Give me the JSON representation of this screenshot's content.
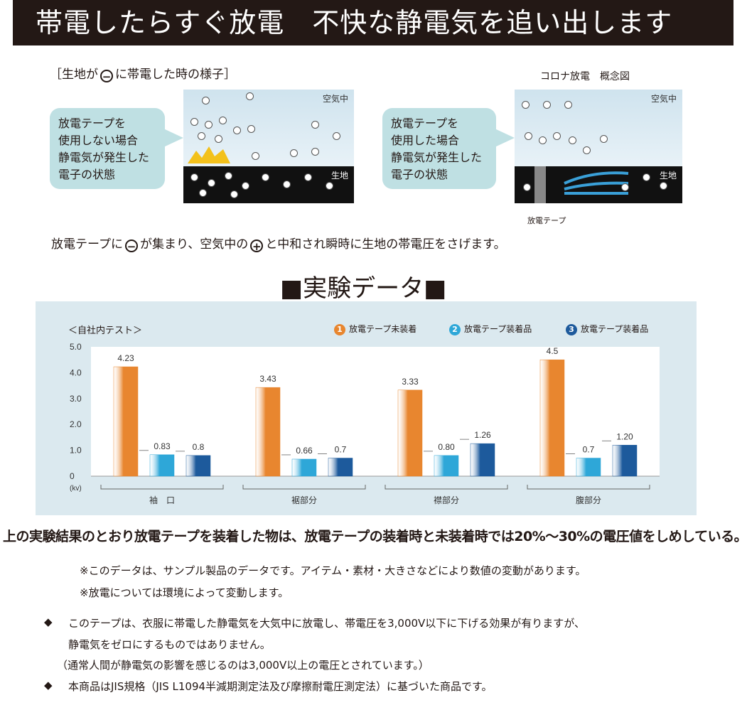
{
  "banner": {
    "title": "帯電したらすぐ放電　不快な静電気を追い出します"
  },
  "diagram": {
    "left_caption_pre": "［生地が",
    "left_caption_minus": "−",
    "left_caption_post": "に帯電した時の様子］",
    "right_caption": "コロナ放電　概念図",
    "air_label": "空気中",
    "fabric_label": "生地",
    "bubble_left": [
      "放電テープを",
      "使用しない場合",
      "静電気が発生した",
      "電子の状態"
    ],
    "bubble_right": [
      "放電テープを",
      "使用した場合",
      "静電気が発生した",
      "電子の状態"
    ],
    "tape_label": "放電テープ"
  },
  "explain": {
    "pre": "放電テープに",
    "minus": "−",
    "mid": "が集まり、空気中の",
    "plus": "+",
    "post": "と中和され瞬時に生地の帯電圧をさげます。"
  },
  "section_title": "■実験データ■",
  "chart_data": {
    "type": "bar",
    "title": "＜自社内テスト＞",
    "ylabel": "(kv)",
    "ylim": [
      0,
      5.0
    ],
    "yticks": [
      "5.0",
      "4.0",
      "3.0",
      "2.0",
      "1.0",
      "0"
    ],
    "categories": [
      "袖　口",
      "裾部分",
      "襟部分",
      "腹部分"
    ],
    "series": [
      {
        "name": "放電テープ未装着",
        "marker": "1",
        "color": "#e8862f",
        "values": [
          4.23,
          3.43,
          3.33,
          4.5
        ],
        "labels": [
          "4.23",
          "3.43",
          "3.33",
          "4.5"
        ]
      },
      {
        "name": "放電テープ装着品",
        "marker": "2",
        "color": "#2ea7d8",
        "values": [
          0.83,
          0.66,
          0.8,
          0.7
        ],
        "labels": [
          "0.83",
          "0.66",
          "0.80",
          "0.7"
        ]
      },
      {
        "name": "放電テープ装着品",
        "marker": "3",
        "color": "#1d5a9c",
        "values": [
          0.8,
          0.7,
          1.26,
          1.2
        ],
        "labels": [
          "0.8",
          "0.7",
          "1.26",
          "1.20"
        ]
      }
    ],
    "grid": false,
    "legend": "top-right"
  },
  "conclusion": "上の実験結果のとおり放電テープを装着した物は、放電テープの装着時と未装着時では20%～30%の電圧値をしめしている。",
  "notes": [
    "※このデータは、サンプル製品のデータです。アイテム・素材・大きさなどにより数値の変動があります。",
    "※放電については環境によって変動します。"
  ],
  "bullets": {
    "mark": "◆",
    "item1_lines": [
      "このテープは、衣服に帯電した静電気を大気中に放電し、帯電圧を3,000V以下に下げる効果が有りますが、",
      "静電気をゼロにするものではありません。",
      "（通常人間が静電気の影響を感じるのは3,000V以上の電圧とされています。）"
    ],
    "item2": "本商品はJIS規格（JIS L1094半減期測定法及び摩擦耐電圧測定法）に基づいた商品です。"
  }
}
